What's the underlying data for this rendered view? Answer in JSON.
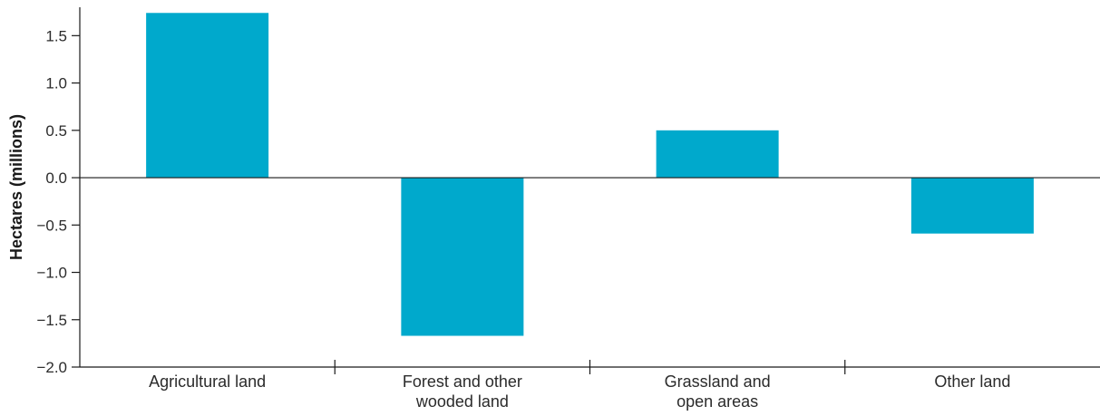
{
  "chart_data": {
    "type": "bar",
    "ylabel": "Hectares (millions)",
    "xlabel": "",
    "categories": [
      [
        "Agricultural land"
      ],
      [
        "Forest and other",
        "wooded land"
      ],
      [
        "Grassland and",
        "open areas"
      ],
      [
        "Other land"
      ]
    ],
    "values": [
      1.74,
      -1.67,
      0.5,
      -0.59
    ],
    "ylim": [
      -2.0,
      1.8
    ],
    "yticks": [
      1.5,
      1.0,
      0.5,
      0.0,
      -0.5,
      -1.0,
      -1.5,
      -2.0
    ],
    "ytick_labels": [
      "1.5",
      "1.0",
      "0.5",
      "0.0",
      "−0.5",
      "−1.0",
      "−1.5",
      "−2.0"
    ],
    "grid": false,
    "legend": "none",
    "colors": {
      "bar": "#00a9cc",
      "axis": "#1a1a1a",
      "text": "#2b2b2b"
    }
  }
}
